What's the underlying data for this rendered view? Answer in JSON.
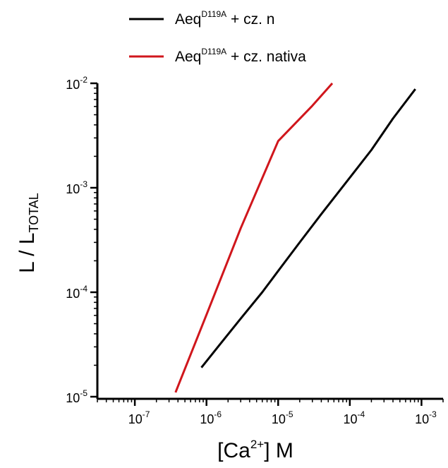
{
  "chart_data": {
    "type": "line",
    "title": "",
    "xlabel": {
      "main": "[Ca",
      "sup": "2+",
      "tail": "] M"
    },
    "ylabel": {
      "main": "L / L",
      "sub": "TOTAL"
    },
    "x_scale": "log",
    "y_scale": "log",
    "xlim": [
      3e-08,
      0.002
    ],
    "ylim": [
      1e-05,
      0.01
    ],
    "x_ticks": [
      {
        "base": "10",
        "exp": "-7",
        "value": 1e-07
      },
      {
        "base": "10",
        "exp": "-6",
        "value": 1e-06
      },
      {
        "base": "10",
        "exp": "-5",
        "value": 1e-05
      },
      {
        "base": "10",
        "exp": "-4",
        "value": 0.0001
      },
      {
        "base": "10",
        "exp": "-3",
        "value": 0.001
      }
    ],
    "y_ticks": [
      {
        "base": "10",
        "exp": "-5",
        "value": 1e-05
      },
      {
        "base": "10",
        "exp": "-4",
        "value": 0.0001
      },
      {
        "base": "10",
        "exp": "-3",
        "value": 0.001
      },
      {
        "base": "10",
        "exp": "-2",
        "value": 0.01
      }
    ],
    "grid": false,
    "legend_position": "top",
    "series": [
      {
        "name": {
          "main": "Aeq",
          "sup": "D119A",
          "tail": " + cz. n"
        },
        "color": "#000000",
        "x": [
          8.5e-07,
          1.5e-06,
          3e-06,
          6e-06,
          1e-05,
          2e-05,
          4e-05,
          0.0001,
          0.0002,
          0.0004,
          0.00082
        ],
        "y": [
          1.9e-05,
          3.1e-05,
          5.6e-05,
          0.0001,
          0.00016,
          0.0003,
          0.00056,
          0.00125,
          0.0023,
          0.0046,
          0.0088
        ]
      },
      {
        "name": {
          "main": "Aeq",
          "sup": "D119A",
          "tail": " + cz. nativa"
        },
        "color": "#d0161c",
        "x": [
          3.7e-07,
          1e-06,
          3e-06,
          1e-05,
          3e-05,
          5.7e-05
        ],
        "y": [
          1.1e-05,
          6.1e-05,
          0.00041,
          0.0028,
          0.0061,
          0.01
        ]
      }
    ]
  }
}
